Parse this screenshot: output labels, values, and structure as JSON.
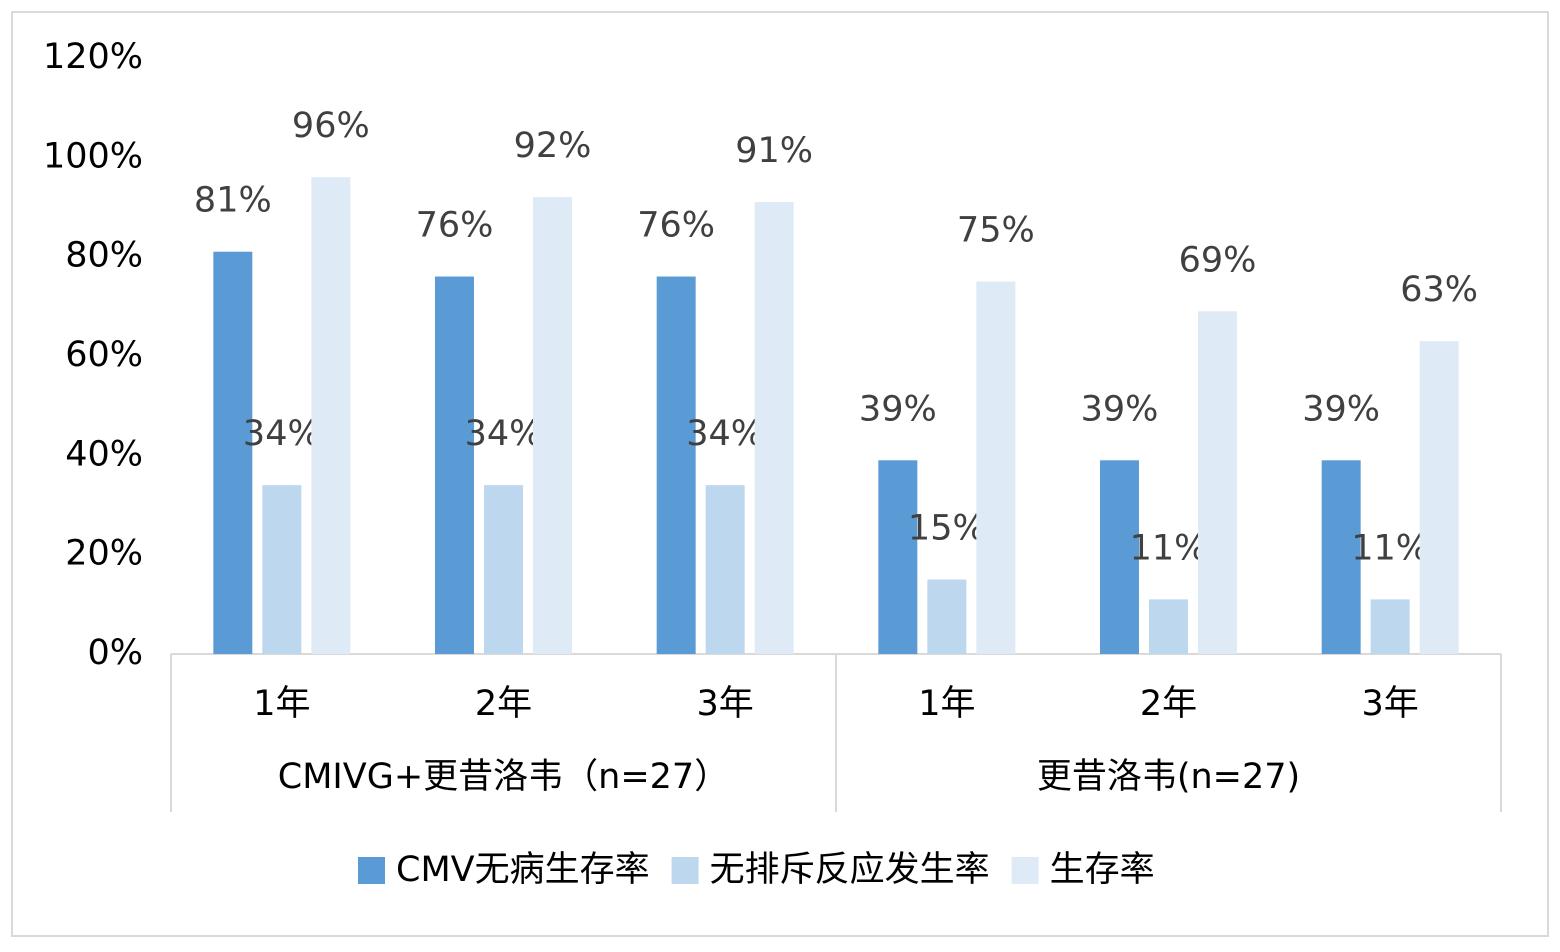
{
  "chart_data": {
    "type": "bar",
    "groups": [
      {
        "name": "CMIVG+更昔洛韦（n=27）",
        "categories": [
          "1年",
          "2年",
          "3年"
        ]
      },
      {
        "name": "更昔洛韦(n=27)",
        "categories": [
          "1年",
          "2年",
          "3年"
        ]
      }
    ],
    "series": [
      {
        "name": "CMV无病生存率",
        "color": "#5b9bd5",
        "values": [
          81,
          76,
          76,
          39,
          39,
          39
        ],
        "value_labels": [
          "81%",
          "76%",
          "76%",
          "39%",
          "39%",
          "39%"
        ]
      },
      {
        "name": "无排斥反应发生率",
        "color": "#bdd7ee",
        "values": [
          34,
          34,
          34,
          15,
          11,
          11
        ],
        "value_labels": [
          "34%",
          "34%",
          "34%",
          "15%",
          "11%",
          "11%"
        ]
      },
      {
        "name": "生存率",
        "color": "#deebf7",
        "values": [
          96,
          92,
          91,
          75,
          69,
          63
        ],
        "value_labels": [
          "96%",
          "92%",
          "91%",
          "75%",
          "69%",
          "63%"
        ]
      }
    ],
    "ylim": [
      0,
      120
    ],
    "yticks": [
      {
        "value": 0,
        "label": "0%"
      },
      {
        "value": 20,
        "label": "20%"
      },
      {
        "value": 40,
        "label": "40%"
      },
      {
        "value": 60,
        "label": "60%"
      },
      {
        "value": 80,
        "label": "80%"
      },
      {
        "value": 100,
        "label": "100%"
      },
      {
        "value": 120,
        "label": "120%"
      }
    ],
    "grid": false,
    "legend": "bottom"
  }
}
